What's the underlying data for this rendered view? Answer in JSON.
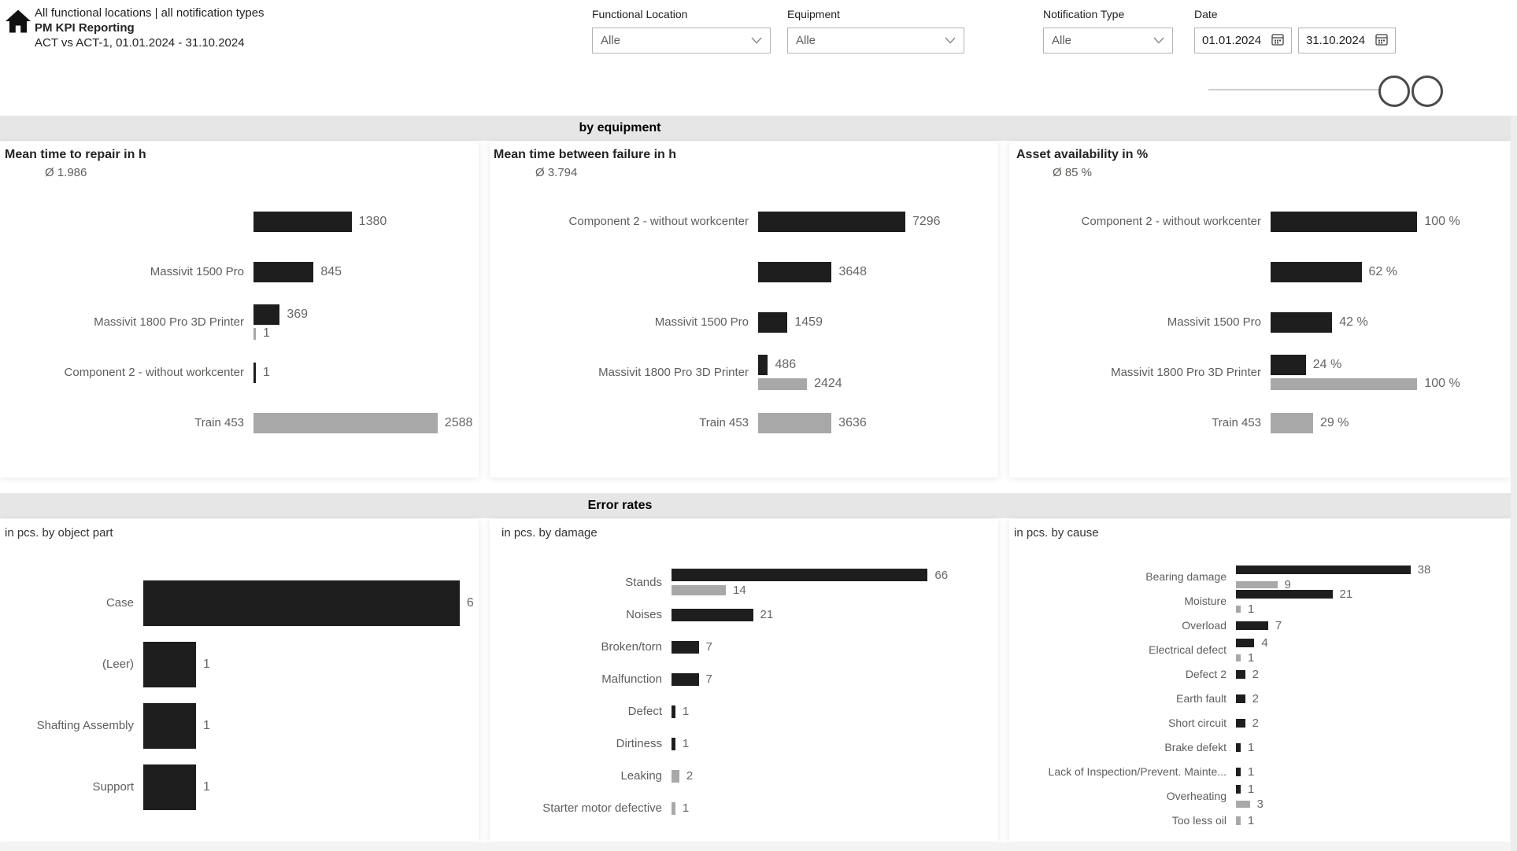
{
  "header": {
    "breadcrumb": "All functional locations | all notification types",
    "title": "PM KPI Reporting",
    "subtitle": "ACT vs ACT-1, 01.01.2024 - 31.10.2024"
  },
  "filters": {
    "functional_location": {
      "label": "Functional Location",
      "value": "Alle"
    },
    "equipment": {
      "label": "Equipment",
      "value": "Alle"
    },
    "notification_type": {
      "label": "Notification Type",
      "value": "Alle"
    },
    "date": {
      "label": "Date",
      "from": "01.01.2024",
      "to": "31.10.2024"
    }
  },
  "sections": {
    "by_equipment": "by equipment",
    "error_rates": "Error rates"
  },
  "legend": {
    "series": [
      "ACT",
      "ACT-1"
    ]
  },
  "icons": {
    "home": "house glyph",
    "calendar": "calendar grid",
    "chevron_down": "v chevron",
    "slider_handles": "two circles"
  },
  "colors": {
    "act_bar": "#1f1e1e",
    "act1_bar": "#a8a8a8",
    "section_band": "#e6e6e6",
    "label_text": "#605e5c",
    "value_text": "#666666"
  },
  "chart_data": [
    {
      "type": "bar",
      "orientation": "horizontal",
      "title": "Mean time to repair in h",
      "average": "Ø 1.986",
      "series": [
        "ACT",
        "ACT-1"
      ],
      "axis_max": 2900,
      "grid": false,
      "legend_position": "none",
      "rows": [
        {
          "label": "",
          "act": 1380,
          "act_display": "1380"
        },
        {
          "label": "Massivit 1500 Pro",
          "act": 845,
          "act_display": "845"
        },
        {
          "label": "Massivit 1800 Pro 3D Printer",
          "act": 369,
          "act_display": "369",
          "act1": 1,
          "act1_display": "1"
        },
        {
          "label": "Component 2 - without workcenter",
          "act": 1,
          "act_display": "1"
        },
        {
          "label": "Train 453",
          "act1": 2588,
          "act1_display": "2588"
        }
      ]
    },
    {
      "type": "bar",
      "orientation": "horizontal",
      "title": "Mean time between failure in h",
      "average": "Ø 3.794",
      "series": [
        "ACT",
        "ACT-1"
      ],
      "axis_max": 8000,
      "grid": false,
      "legend_position": "none",
      "rows": [
        {
          "label": "Component 2 - without workcenter",
          "act": 7296,
          "act_display": "7296"
        },
        {
          "label": "",
          "act": 3648,
          "act_display": "3648"
        },
        {
          "label": "Massivit 1500 Pro",
          "act": 1459,
          "act_display": "1459"
        },
        {
          "label": "Massivit 1800 Pro 3D Printer",
          "act": 486,
          "act_display": "486",
          "act1": 2424,
          "act1_display": "2424"
        },
        {
          "label": "Train 453",
          "act1": 3636,
          "act1_display": "3636"
        }
      ]
    },
    {
      "type": "bar",
      "orientation": "horizontal",
      "title": "Asset availability in %",
      "average": "Ø 85 %",
      "series": [
        "ACT",
        "ACT-1"
      ],
      "axis_max": 110,
      "grid": false,
      "legend_position": "none",
      "rows": [
        {
          "label": "Component 2 - without workcenter",
          "act": 100,
          "act_display": "100 %"
        },
        {
          "label": "",
          "act": 62,
          "act_display": "62 %"
        },
        {
          "label": "Massivit 1500 Pro",
          "act": 42,
          "act_display": "42 %"
        },
        {
          "label": "Massivit 1800 Pro 3D Printer",
          "act": 24,
          "act_display": "24 %",
          "act1": 100,
          "act1_display": "100 %"
        },
        {
          "label": "Train 453",
          "act1": 29,
          "act1_display": "29 %"
        }
      ]
    },
    {
      "type": "bar",
      "orientation": "horizontal",
      "title": "in pcs. by object part",
      "series": [
        "ACT",
        "ACT-1"
      ],
      "axis_max": 6.6,
      "grid": false,
      "legend_position": "none",
      "rows": [
        {
          "label": "Case",
          "act": 6,
          "act_display": "6"
        },
        {
          "label": "(Leer)",
          "act": 1,
          "act_display": "1"
        },
        {
          "label": "Shafting Assembly",
          "act": 1,
          "act_display": "1"
        },
        {
          "label": "Support",
          "act": 1,
          "act_display": "1"
        }
      ]
    },
    {
      "type": "bar",
      "orientation": "horizontal",
      "title": "in pcs. by damage",
      "series": [
        "ACT",
        "ACT-1"
      ],
      "axis_max": 72,
      "grid": false,
      "legend_position": "none",
      "rows": [
        {
          "label": "Stands",
          "act": 66,
          "act_display": "66",
          "act1": 14,
          "act1_display": "14"
        },
        {
          "label": "Noises",
          "act": 21,
          "act_display": "21"
        },
        {
          "label": "Broken/torn",
          "act": 7,
          "act_display": "7"
        },
        {
          "label": "Malfunction",
          "act": 7,
          "act_display": "7"
        },
        {
          "label": "Defect",
          "act": 1,
          "act_display": "1"
        },
        {
          "label": "Dirtiness",
          "act": 1,
          "act_display": "1"
        },
        {
          "label": "Leaking",
          "act1": 2,
          "act1_display": "2"
        },
        {
          "label": "Starter motor defective",
          "act1": 1,
          "act1_display": "1"
        }
      ]
    },
    {
      "type": "bar",
      "orientation": "horizontal",
      "title": "in pcs. by cause",
      "series": [
        "ACT",
        "ACT-1"
      ],
      "axis_max": 42,
      "grid": false,
      "legend_position": "none",
      "rows": [
        {
          "label": "Bearing damage",
          "act": 38,
          "act_display": "38",
          "act1": 9,
          "act1_display": "9"
        },
        {
          "label": "Moisture",
          "act": 21,
          "act_display": "21",
          "act1": 1,
          "act1_display": "1"
        },
        {
          "label": "Overload",
          "act": 7,
          "act_display": "7"
        },
        {
          "label": "Electrical defect",
          "act": 4,
          "act_display": "4",
          "act1": 1,
          "act1_display": "1"
        },
        {
          "label": "Defect 2",
          "act": 2,
          "act_display": "2"
        },
        {
          "label": "Earth fault",
          "act": 2,
          "act_display": "2"
        },
        {
          "label": "Short circuit",
          "act": 2,
          "act_display": "2"
        },
        {
          "label": "Brake defekt",
          "act": 1,
          "act_display": "1"
        },
        {
          "label": "Lack of Inspection/Prevent. Mainte...",
          "act": 1,
          "act_display": "1"
        },
        {
          "label": "Overheating",
          "act": 1,
          "act_display": "1",
          "act1": 3,
          "act1_display": "3"
        },
        {
          "label": "Too less oil",
          "act1": 1,
          "act1_display": "1"
        }
      ]
    }
  ]
}
